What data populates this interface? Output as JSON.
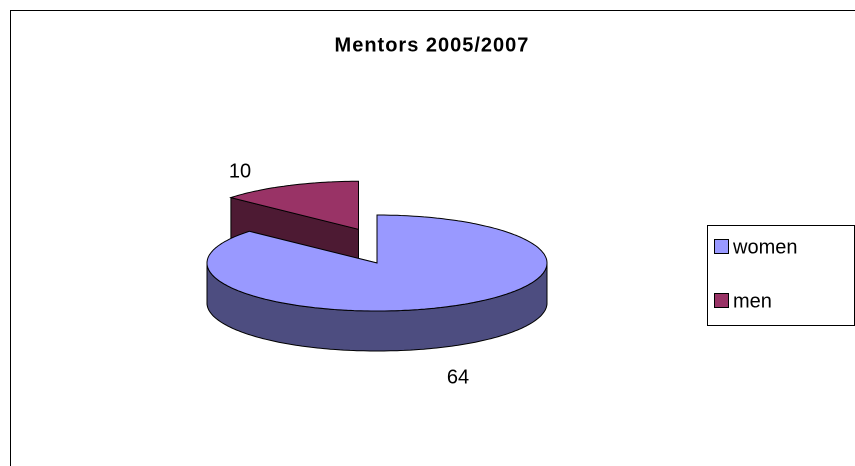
{
  "chart_data": {
    "type": "pie3d",
    "title": "Mentors 2005/2007",
    "categories": [
      "women",
      "men"
    ],
    "values": [
      64,
      10
    ],
    "colors": [
      "#9999ff",
      "#993366"
    ],
    "legend": "right"
  }
}
